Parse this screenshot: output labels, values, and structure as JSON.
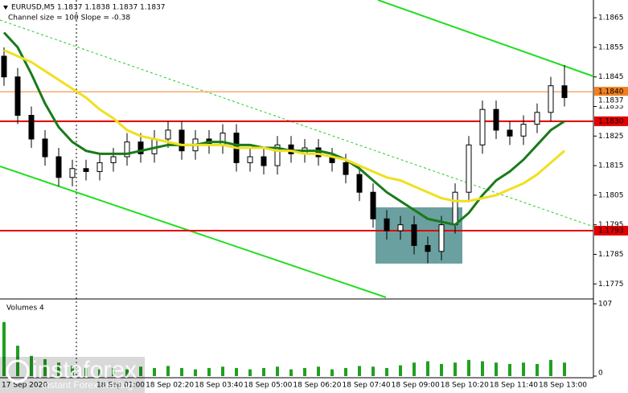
{
  "chart_data": {
    "type": "candlestick",
    "title": "EURUSD,M5  1.1837 1.1838 1.1837 1.1837",
    "subtitle": "Channel size = 100 Slope = -0.38",
    "open": [
      1.1852,
      1.1845,
      1.1832,
      1.1824,
      1.1818,
      1.1811,
      1.1814,
      1.1813,
      1.1816,
      1.1818,
      1.1823,
      1.1819,
      1.1824,
      1.1827,
      1.182,
      1.1824,
      1.1822,
      1.1826,
      1.1816,
      1.1818,
      1.1815,
      1.1822,
      1.1819,
      1.1821,
      1.1818,
      1.1816,
      1.1812,
      1.1806,
      1.1797,
      1.1793,
      1.1795,
      1.1788,
      1.1786,
      1.1795,
      1.1806,
      1.1822,
      1.1834,
      1.1827,
      1.1825,
      1.1829,
      1.1833,
      1.1842
    ],
    "high": [
      1.1855,
      1.1848,
      1.1835,
      1.1827,
      1.1821,
      1.1817,
      1.1817,
      1.1819,
      1.1821,
      1.1826,
      1.1826,
      1.1827,
      1.183,
      1.183,
      1.1827,
      1.1827,
      1.1829,
      1.1829,
      1.1821,
      1.1821,
      1.1825,
      1.1825,
      1.1824,
      1.1824,
      1.1821,
      1.1819,
      1.1815,
      1.1809,
      1.18,
      1.1798,
      1.1798,
      1.1791,
      1.1798,
      1.1809,
      1.1825,
      1.1837,
      1.1837,
      1.183,
      1.1832,
      1.1836,
      1.1845,
      1.1849
    ],
    "low": [
      1.1842,
      1.1829,
      1.1821,
      1.1815,
      1.1808,
      1.1808,
      1.181,
      1.181,
      1.1813,
      1.1815,
      1.1816,
      1.1816,
      1.1821,
      1.1817,
      1.1817,
      1.1819,
      1.1819,
      1.1813,
      1.1813,
      1.1812,
      1.1812,
      1.1816,
      1.1816,
      1.1815,
      1.1813,
      1.1809,
      1.1803,
      1.1794,
      1.179,
      1.179,
      1.1785,
      1.1782,
      1.1783,
      1.1792,
      1.1803,
      1.1819,
      1.1824,
      1.1822,
      1.1822,
      1.1826,
      1.183,
      1.1835
    ],
    "close": [
      1.1845,
      1.1832,
      1.1824,
      1.1818,
      1.1811,
      1.1814,
      1.1813,
      1.1816,
      1.1818,
      1.1823,
      1.1819,
      1.1824,
      1.1827,
      1.182,
      1.1824,
      1.1822,
      1.1826,
      1.1816,
      1.1818,
      1.1815,
      1.1822,
      1.1819,
      1.1821,
      1.1818,
      1.1816,
      1.1812,
      1.1806,
      1.1797,
      1.1793,
      1.1795,
      1.1788,
      1.1786,
      1.1795,
      1.1806,
      1.1822,
      1.1834,
      1.1827,
      1.1825,
      1.1829,
      1.1833,
      1.1842,
      1.1838
    ],
    "series": [
      {
        "color": "#1a7a1a",
        "values": [
          1.186,
          1.1855,
          1.1846,
          1.1836,
          1.1828,
          1.1823,
          1.182,
          1.1819,
          1.1819,
          1.1819,
          1.182,
          1.1821,
          1.1822,
          1.1822,
          1.1822,
          1.1823,
          1.1823,
          1.1822,
          1.1822,
          1.1821,
          1.1821,
          1.182,
          1.182,
          1.182,
          1.1819,
          1.1817,
          1.1814,
          1.181,
          1.1806,
          1.1803,
          1.18,
          1.1797,
          1.1796,
          1.1795,
          1.1799,
          1.1805,
          1.181,
          1.1813,
          1.1817,
          1.1822,
          1.1827,
          1.183
        ]
      },
      {
        "color": "#f0e020",
        "values": [
          1.1854,
          1.1852,
          1.185,
          1.1847,
          1.1844,
          1.1841,
          1.1838,
          1.1834,
          1.1831,
          1.1827,
          1.1825,
          1.1824,
          1.1823,
          1.1822,
          1.1822,
          1.1822,
          1.1822,
          1.1821,
          1.1821,
          1.1821,
          1.182,
          1.182,
          1.1819,
          1.1819,
          1.1818,
          1.1817,
          1.1815,
          1.1813,
          1.1811,
          1.181,
          1.1808,
          1.1806,
          1.1804,
          1.1803,
          1.1803,
          1.1804,
          1.1805,
          1.1807,
          1.1809,
          1.1812,
          1.1816,
          1.182
        ]
      }
    ],
    "ylim": [
      1.1771,
      1.1871
    ],
    "yticks": [
      1.1865,
      1.1855,
      1.1845,
      1.1835,
      1.1825,
      1.1815,
      1.1805,
      1.1795,
      1.1785,
      1.1775
    ],
    "levels": [
      {
        "value": 1.184,
        "label": "1.1840",
        "color": "#f08020"
      },
      {
        "value": 1.1837,
        "label": "1.1837",
        "color": "#000000"
      },
      {
        "value": 1.183,
        "label": "1.1830",
        "color": "#e00000"
      },
      {
        "value": 1.1793,
        "label": "1.1793",
        "color": "#e00000"
      }
    ],
    "volume_title": "Volumes 4",
    "volumes": [
      80,
      45,
      30,
      25,
      20,
      15,
      12,
      10,
      12,
      10,
      14,
      12,
      15,
      12,
      10,
      12,
      14,
      12,
      10,
      12,
      14,
      10,
      12,
      14,
      10,
      12,
      15,
      14,
      12,
      16,
      20,
      22,
      18,
      20,
      24,
      22,
      20,
      18,
      20,
      18,
      24,
      20
    ],
    "volume_color": "#20a020",
    "vlim": [
      0,
      107
    ],
    "vticks": [
      0,
      107
    ],
    "xlabels": [
      "17 Sep 2020",
      "18 Sep 01:00",
      "18 Sep 02:20",
      "18 Sep 03:40",
      "18 Sep 05:00",
      "18 Sep 06:20",
      "18 Sep 07:40",
      "18 Sep 09:00",
      "18 Sep 10:20",
      "18 Sep 11:40",
      "18 Sep 13:00"
    ],
    "watermark": "instaforex",
    "watermark_sub": "Instant Forex Trading"
  }
}
